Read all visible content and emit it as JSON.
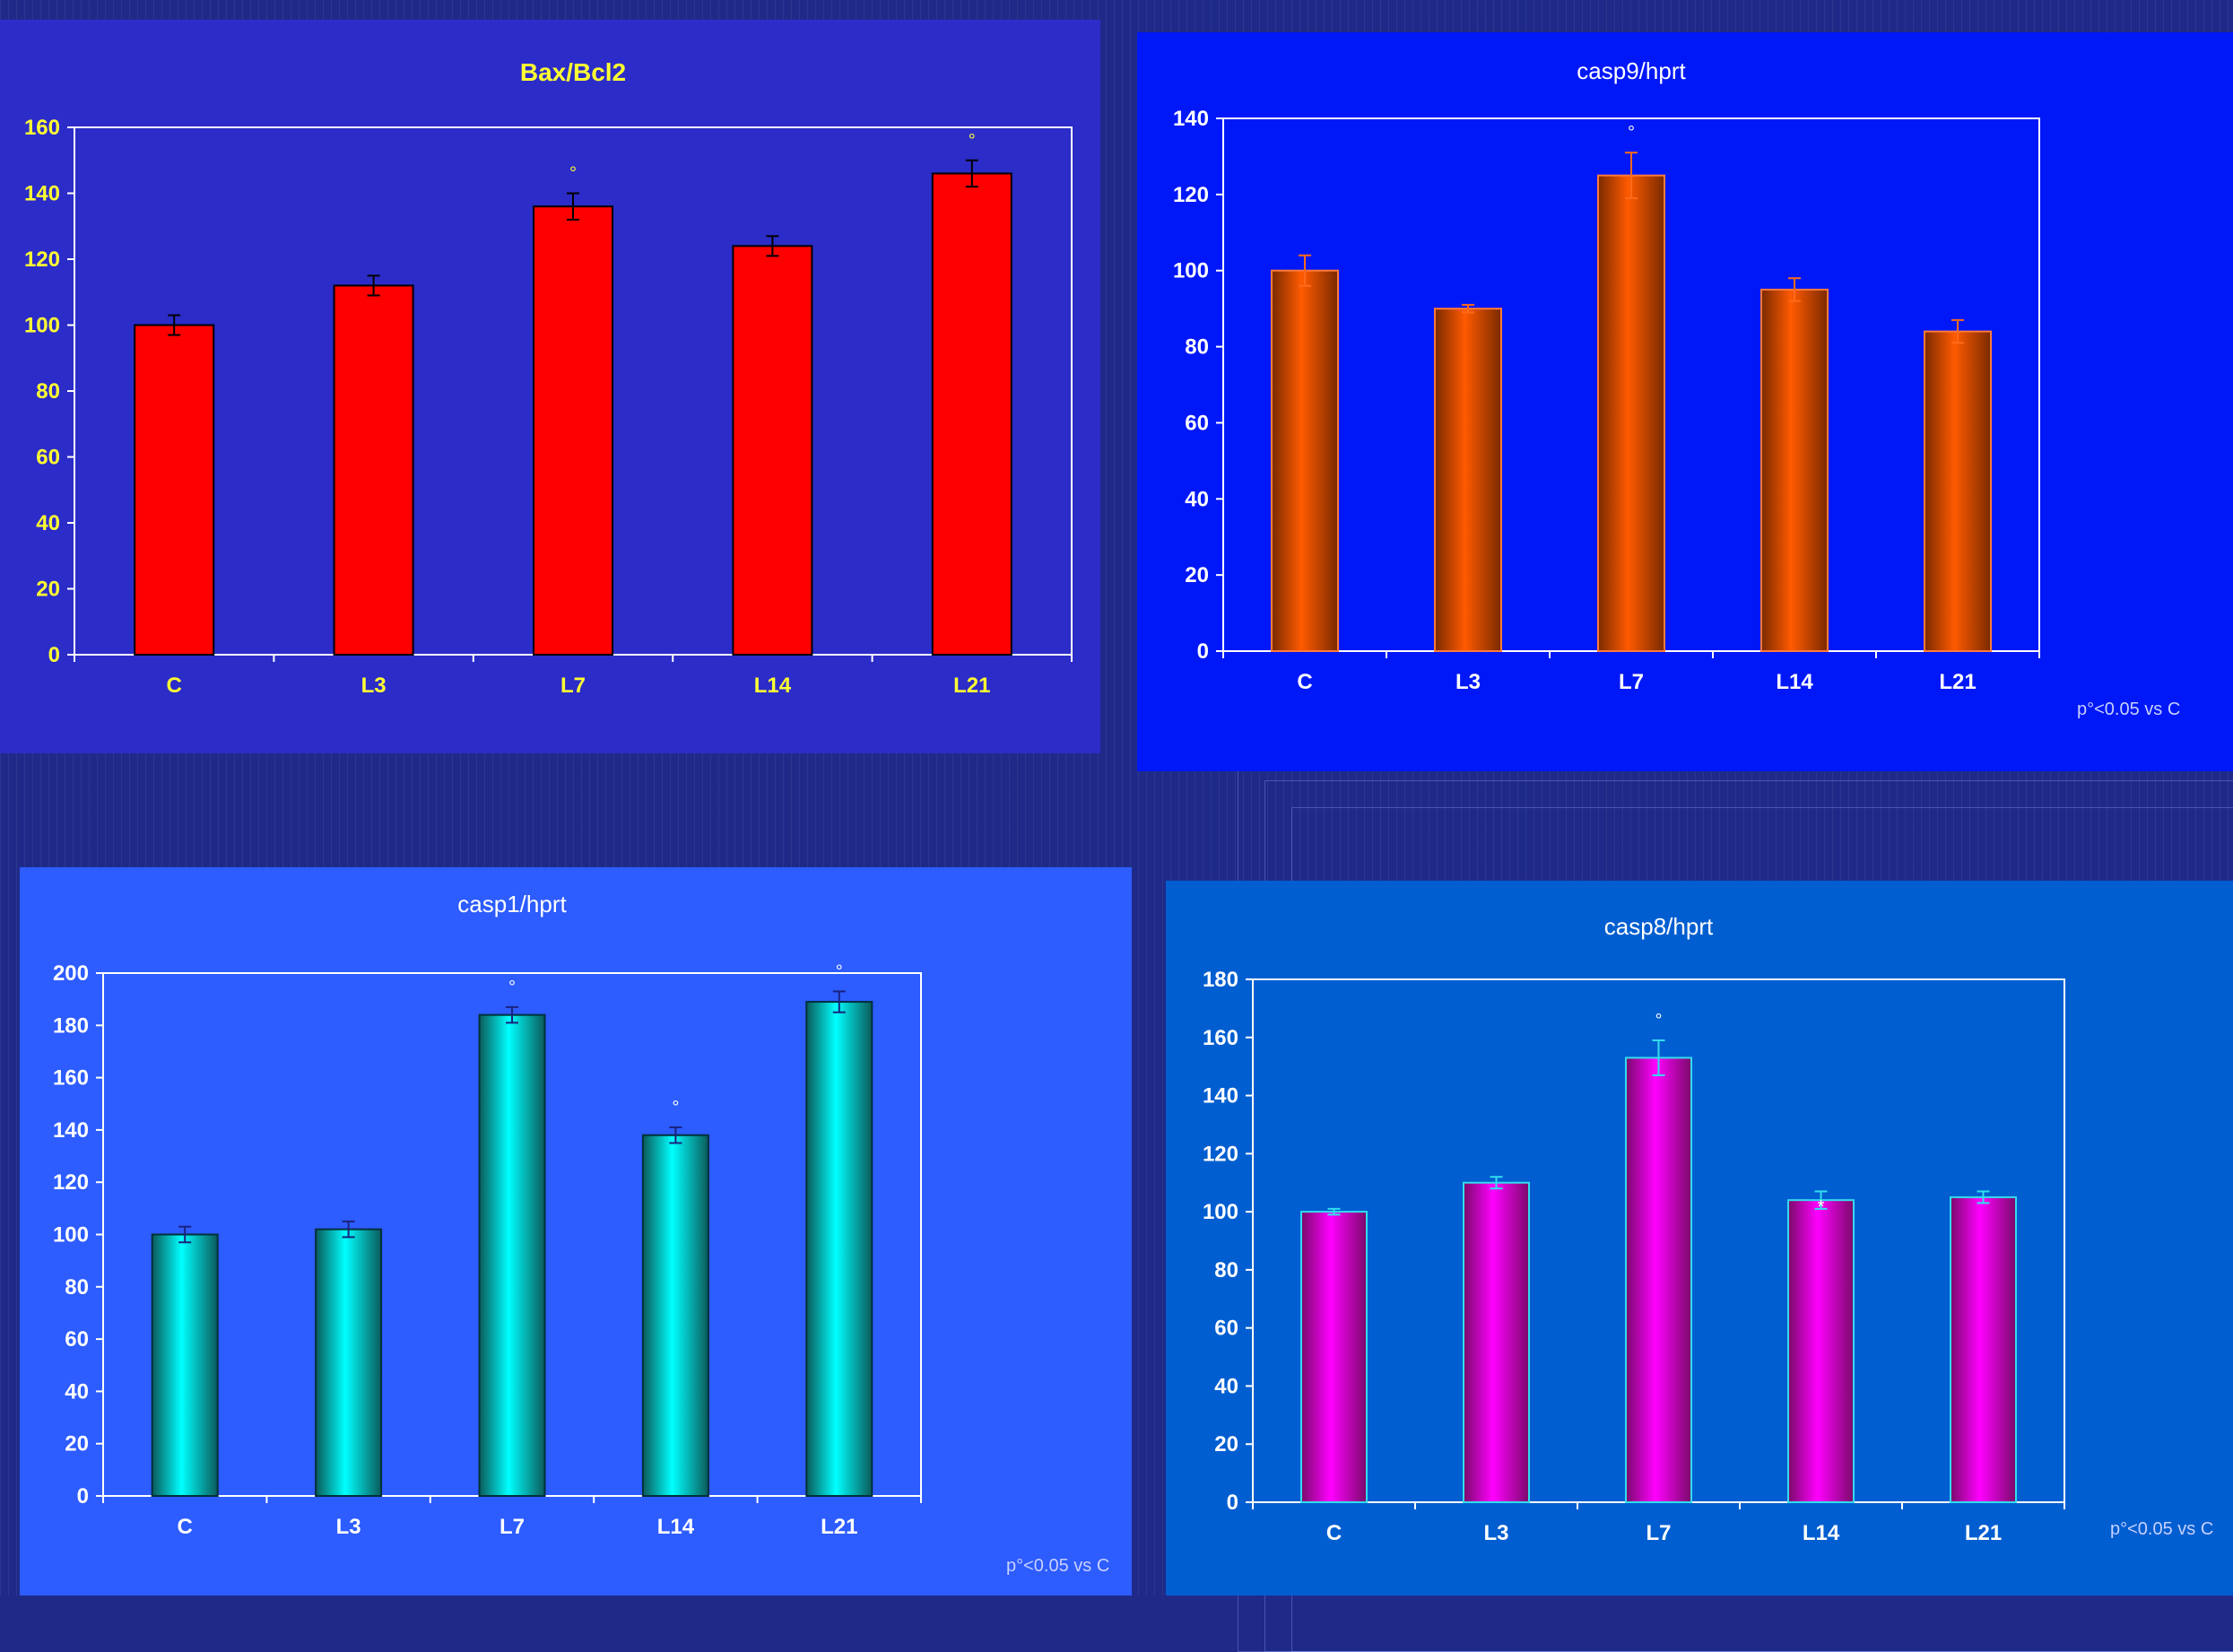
{
  "footnote": "p°<0.05 vs C",
  "chart_data": [
    {
      "id": "bax",
      "type": "bar",
      "title": "Bax/Bcl2",
      "categories": [
        "C",
        "L3",
        "L7",
        "L14",
        "L21"
      ],
      "values": [
        100,
        112,
        136,
        124,
        146
      ],
      "errors": [
        3,
        3,
        4,
        3,
        4
      ],
      "marks": [
        "",
        "",
        "°",
        "",
        "°"
      ],
      "yticks": [
        "0",
        "20",
        "40",
        "60",
        "80",
        "100",
        "120",
        "140",
        "160"
      ],
      "ylim": [
        0,
        160
      ],
      "colors": {
        "bg": "#2c2cc8",
        "bar": "#ff0000",
        "text": "#ffff33"
      }
    },
    {
      "id": "casp9",
      "type": "bar",
      "title": "casp9/hprt",
      "categories": [
        "C",
        "L3",
        "L7",
        "L14",
        "L21"
      ],
      "values": [
        100,
        90,
        125,
        95,
        84
      ],
      "errors": [
        4,
        1,
        6,
        3,
        3
      ],
      "marks": [
        "",
        "",
        "°",
        "",
        ""
      ],
      "yticks": [
        "0",
        "20",
        "40",
        "60",
        "80",
        "100",
        "120",
        "140"
      ],
      "ylim": [
        0,
        140
      ],
      "footnote": "p°<0.05 vs C",
      "colors": {
        "bg": "#0018f8",
        "bar": "#ff5a00",
        "text": "#ffffff"
      }
    },
    {
      "id": "casp1",
      "type": "bar",
      "title": "casp1/hprt",
      "categories": [
        "C",
        "L3",
        "L7",
        "L14",
        "L21"
      ],
      "values": [
        100,
        102,
        184,
        138,
        189
      ],
      "errors": [
        3,
        3,
        3,
        3,
        4
      ],
      "marks": [
        "",
        "",
        "°",
        "°",
        "°"
      ],
      "yticks": [
        "0",
        "20",
        "40",
        "60",
        "80",
        "100",
        "120",
        "140",
        "160",
        "180",
        "200"
      ],
      "ylim": [
        0,
        200
      ],
      "footnote": "p°<0.05 vs C",
      "colors": {
        "bg": "#2d5cff",
        "bar": "#00ffff",
        "text": "#ffffff"
      }
    },
    {
      "id": "casp8",
      "type": "bar",
      "title": "casp8/hprt",
      "categories": [
        "C",
        "L3",
        "L7",
        "L14",
        "L21"
      ],
      "values": [
        100,
        110,
        153,
        104,
        105
      ],
      "errors": [
        1,
        2,
        6,
        3,
        2
      ],
      "marks": [
        "",
        "",
        "°",
        "*",
        ""
      ],
      "yticks": [
        "0",
        "20",
        "40",
        "60",
        "80",
        "100",
        "120",
        "140",
        "160",
        "180"
      ],
      "ylim": [
        0,
        180
      ],
      "footnote": "p°<0.05 vs C",
      "colors": {
        "bg": "#005ed0",
        "bar": "#ff00ff",
        "text": "#ffffff"
      }
    }
  ]
}
